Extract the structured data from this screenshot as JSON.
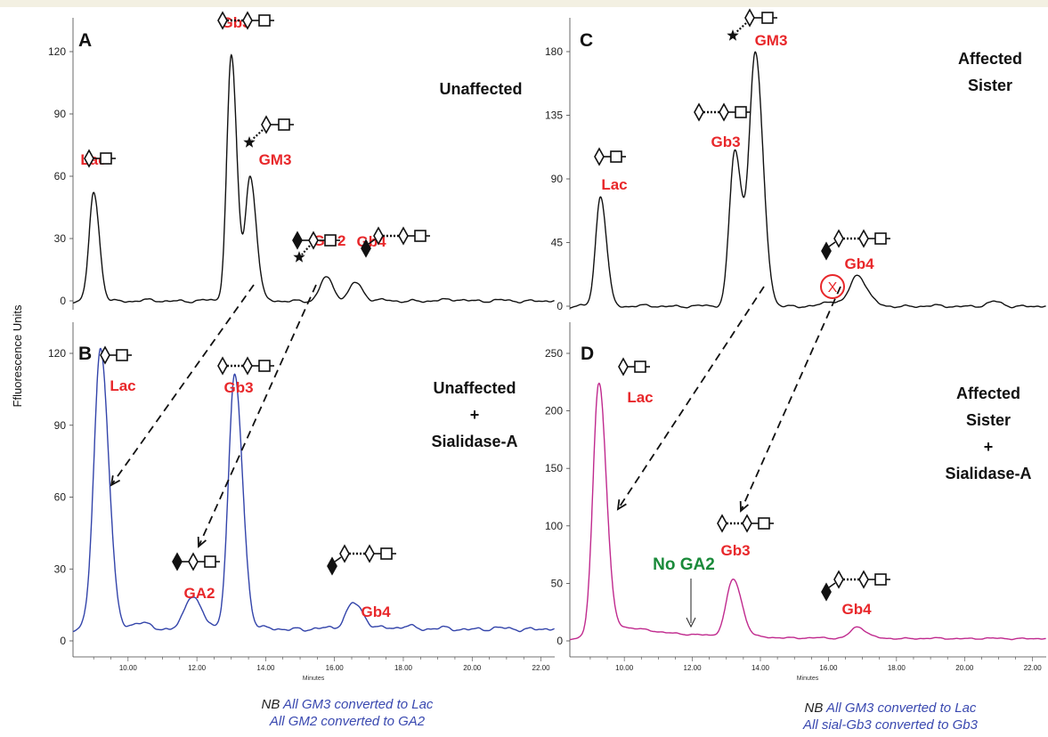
{
  "ylabel": "Ffluorescence Units",
  "xlabel": "Minutes",
  "colors": {
    "label": "#e8272a",
    "green": "#1a8a3a",
    "note": "#3a49b0",
    "traceA": "#111111",
    "traceB": "#3344aa",
    "traceD": "#c02a8e"
  },
  "panels": [
    {
      "letter": "A",
      "condition": [
        "Unaffected"
      ],
      "chart_data": {
        "type": "line",
        "xlim": [
          8.4,
          22.4
        ],
        "ylim": [
          -5,
          125
        ],
        "yticks": [
          0,
          30,
          60,
          90,
          120
        ],
        "xticks": [],
        "line_color": "#111111",
        "baseline": 0,
        "noise": [
          0.5,
          0.3,
          0.5,
          0.3
        ],
        "peaks": [
          {
            "label": "Lac",
            "x": 9.0,
            "h": 52,
            "w": 0.13,
            "glycan": "lac"
          },
          {
            "label": "Gb3",
            "x": 13.0,
            "h": 118,
            "w": 0.13,
            "glycan": "gb3"
          },
          {
            "label": "GM3",
            "x": 13.55,
            "h": 60,
            "w": 0.14,
            "glycan": "gm3"
          },
          {
            "label": "GM2",
            "x": 15.75,
            "h": 11,
            "w": 0.17,
            "glycan": "gm2"
          },
          {
            "label": "Gb4",
            "x": 16.6,
            "h": 9,
            "w": 0.17,
            "glycan": "gb4"
          }
        ],
        "small_bumps": [
          {
            "x": 19.6,
            "h": 0.8,
            "w": 0.2
          }
        ]
      }
    },
    {
      "letter": "B",
      "condition": [
        "Unaffected",
        "+",
        "Sialidase-A"
      ],
      "chart_data": {
        "type": "line",
        "xlim": [
          8.4,
          22.4
        ],
        "ylim": [
          -3,
          130
        ],
        "yticks": [
          0,
          30,
          60,
          90,
          120
        ],
        "xticks": [
          10.0,
          12.0,
          14.0,
          16.0,
          18.0,
          20.0,
          22.0
        ],
        "xticklabels": [
          "10.00",
          "12.00",
          "14.00",
          "16.00",
          "18.00",
          "20.00",
          "22.00"
        ],
        "line_color": "#3344aa",
        "baseline": 5,
        "noise": [
          0.5,
          0.4,
          0.6,
          0.3
        ],
        "peaks": [
          {
            "label": "Lac",
            "x": 9.2,
            "h": 117,
            "w": 0.19,
            "glycan": "lac"
          },
          {
            "label": "GA2",
            "x": 11.85,
            "h": 14,
            "w": 0.21,
            "glycan": "ga2"
          },
          {
            "label": "Gb3",
            "x": 13.1,
            "h": 106,
            "w": 0.18,
            "glycan": "gb3"
          },
          {
            "label": "Gb4",
            "x": 16.55,
            "h": 11,
            "w": 0.22,
            "glycan": "gb4"
          }
        ],
        "small_bumps": [
          {
            "x": 10.3,
            "h": 2.5,
            "w": 0.25
          },
          {
            "x": 18.1,
            "h": 1.5,
            "w": 0.2
          }
        ]
      }
    },
    {
      "letter": "C",
      "condition": [
        "Affected",
        "Sister"
      ],
      "chart_data": {
        "type": "line",
        "xlim": [
          8.4,
          22.4
        ],
        "ylim": [
          -8,
          188
        ],
        "yticks": [
          0,
          45,
          90,
          135,
          180
        ],
        "xticks": [],
        "line_color": "#111111",
        "baseline": 0,
        "noise": [
          0.6,
          0.4,
          0.6,
          0.4
        ],
        "peaks": [
          {
            "label": "Lac",
            "x": 9.3,
            "h": 78,
            "w": 0.14,
            "glycan": "lac"
          },
          {
            "label": "Gb3",
            "x": 13.25,
            "h": 110,
            "w": 0.16,
            "glycan": "gb3"
          },
          {
            "label": "GM3",
            "x": 13.85,
            "h": 178,
            "w": 0.18,
            "glycan": "gm3"
          },
          {
            "label": "X",
            "x": 16.1,
            "h": 3.5,
            "w": 0.2,
            "glycan": ""
          },
          {
            "label": "Gb4",
            "x": 16.85,
            "h": 22,
            "w": 0.22,
            "glycan": "gb4"
          }
        ],
        "small_bumps": [
          {
            "x": 20.9,
            "h": 3,
            "w": 0.2
          }
        ]
      }
    },
    {
      "letter": "D",
      "condition": [
        "Affected",
        "Sister",
        "+",
        "Sialidase-A"
      ],
      "annotation": "No GA2",
      "chart_data": {
        "type": "line",
        "xlim": [
          8.4,
          22.4
        ],
        "ylim": [
          -5,
          262
        ],
        "yticks": [
          0,
          50,
          100,
          150,
          200,
          250
        ],
        "xticks": [
          10.0,
          12.0,
          14.0,
          16.0,
          18.0,
          20.0,
          22.0
        ],
        "xticklabels": [
          "10.00",
          "12.00",
          "14.00",
          "16.00",
          "18.00",
          "20.00",
          "22.00"
        ],
        "line_color": "#c02a8e",
        "baseline": 2,
        "tail": {
          "amp": 16,
          "decay": 1.8
        },
        "noise": [
          0.4,
          0.3,
          0.4,
          0.3
        ],
        "peaks": [
          {
            "label": "Lac",
            "x": 9.25,
            "h": 222,
            "w": 0.17,
            "glycan": "lac"
          },
          {
            "label": "Gb3",
            "x": 13.2,
            "h": 50,
            "w": 0.2,
            "glycan": "gb3"
          },
          {
            "label": "Gb4",
            "x": 16.85,
            "h": 10,
            "w": 0.2,
            "glycan": "gb4"
          }
        ],
        "small_bumps": []
      }
    }
  ],
  "notes": [
    {
      "prefix": "NB",
      "lines": [
        "All GM3 converted to Lac",
        "All GM2 converted to GA2"
      ]
    },
    {
      "prefix": "NB",
      "lines": [
        "All GM3 converted to Lac",
        "All sial-Gb3 converted to Gb3"
      ]
    }
  ]
}
